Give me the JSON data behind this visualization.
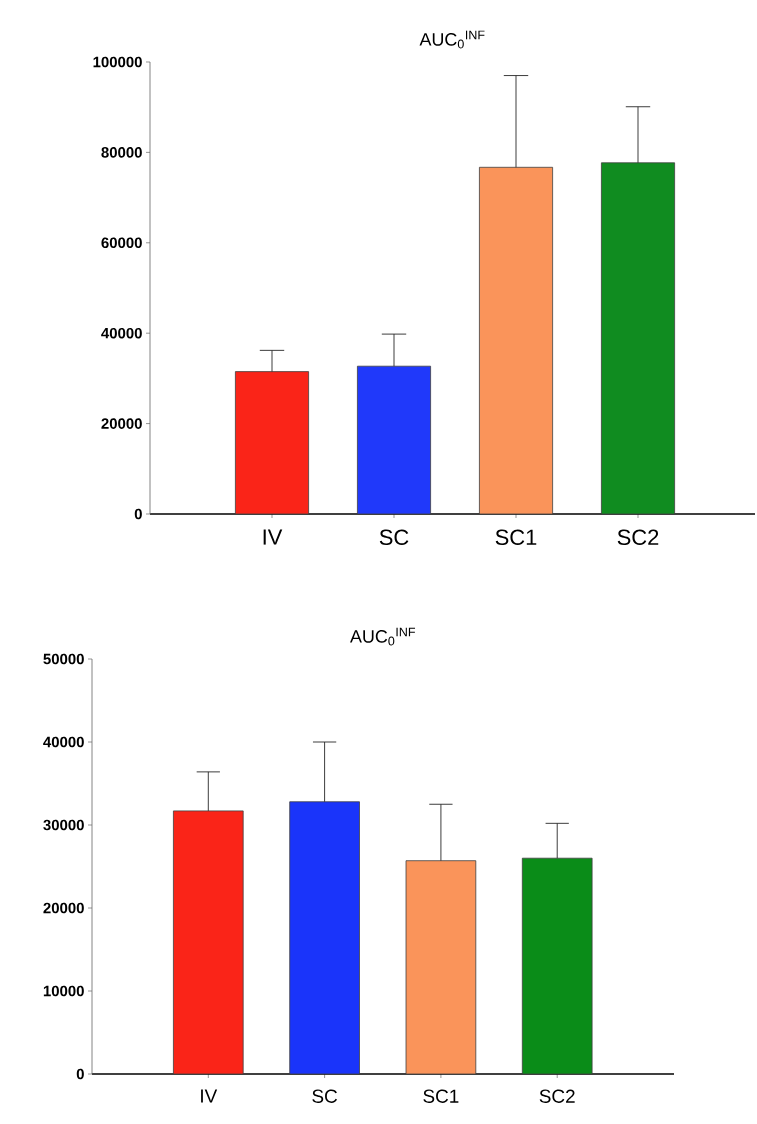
{
  "chart_data": [
    {
      "type": "bar",
      "title": "AUC$_{0}$$^{INF}$",
      "categories": [
        "IV",
        "SC",
        "SC1",
        "SC2"
      ],
      "values": [
        31500,
        32700,
        76700,
        77700
      ],
      "colors": [
        "#fa2418",
        "#2039fa",
        "#fa945a",
        "#108c20"
      ],
      "errors": [
        [
          31500,
          36200
        ],
        [
          32700,
          39800
        ],
        [
          76700,
          97000
        ],
        [
          77700,
          90100
        ]
      ],
      "ylim": [
        0,
        100000
      ],
      "yticks": [
        0,
        20000,
        40000,
        60000,
        80000,
        100000
      ]
    },
    {
      "type": "bar",
      "title": "AUC$_{0}$$^{INF}$",
      "categories": [
        "IV",
        "SC",
        "SC1",
        "SC2"
      ],
      "values": [
        31700,
        32800,
        25700,
        26000
      ],
      "colors": [
        "#fa2418",
        "#1a34fa",
        "#fa945a",
        "#0a8c18"
      ],
      "errors": [
        [
          31700,
          36400
        ],
        [
          32800,
          40000
        ],
        [
          25700,
          32500
        ],
        [
          26000,
          30200
        ]
      ],
      "ylim": [
        0,
        50000
      ],
      "yticks": [
        0,
        10000,
        20000,
        30000,
        40000,
        50000
      ]
    }
  ]
}
